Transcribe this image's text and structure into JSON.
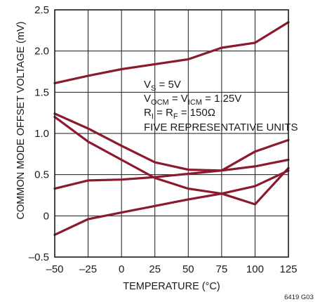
{
  "chart_data": {
    "type": "line",
    "xlabel": "TEMPERATURE (°C)",
    "ylabel": "COMMON MODE OFFSET VOLTAGE (mV)",
    "xlim": [
      -50,
      125
    ],
    "ylim": [
      -0.5,
      2.5
    ],
    "x_ticks": [
      "–50",
      "–25",
      "0",
      "25",
      "50",
      "75",
      "100",
      "125"
    ],
    "y_ticks": [
      "–0.5",
      "0",
      "0.5",
      "1.0",
      "1.5",
      "2.0",
      "2.5"
    ],
    "grid": true,
    "line_color": "#8b1a2f",
    "annotations": {
      "line1": {
        "a": "V",
        "a_sub": "S",
        "b": " = 5V"
      },
      "line2": {
        "a": "V",
        "a_sub": "OCM",
        "b": " = V",
        "b_sub": "ICM",
        "c": " = 1.25V"
      },
      "line3": {
        "a": "R",
        "a_sub": "I",
        "b": " = R",
        "b_sub": "F",
        "c": " = 150Ω"
      },
      "line4": "FIVE REPRESENTATIVE UNITS"
    },
    "figure_id": "6419 G03",
    "series": [
      {
        "x": [
          -50,
          -25,
          0,
          25,
          50,
          75,
          100,
          125
        ],
        "values": [
          1.61,
          1.7,
          1.78,
          1.84,
          1.9,
          2.04,
          2.1,
          2.35
        ]
      },
      {
        "x": [
          -50,
          -25,
          0,
          25,
          50,
          75,
          100,
          125
        ],
        "values": [
          1.24,
          1.06,
          0.85,
          0.65,
          0.56,
          0.55,
          0.78,
          0.92
        ]
      },
      {
        "x": [
          -50,
          -25,
          0,
          25,
          50,
          75,
          100,
          125
        ],
        "values": [
          1.2,
          0.9,
          0.68,
          0.46,
          0.33,
          0.27,
          0.14,
          0.58
        ]
      },
      {
        "x": [
          -50,
          -25,
          0,
          25,
          50,
          75,
          100,
          125
        ],
        "values": [
          0.33,
          0.43,
          0.44,
          0.47,
          0.51,
          0.55,
          0.6,
          0.68
        ]
      },
      {
        "x": [
          -50,
          -25,
          0,
          25,
          50,
          75,
          100,
          125
        ],
        "values": [
          -0.23,
          -0.04,
          0.04,
          0.12,
          0.2,
          0.27,
          0.36,
          0.55
        ]
      }
    ]
  }
}
